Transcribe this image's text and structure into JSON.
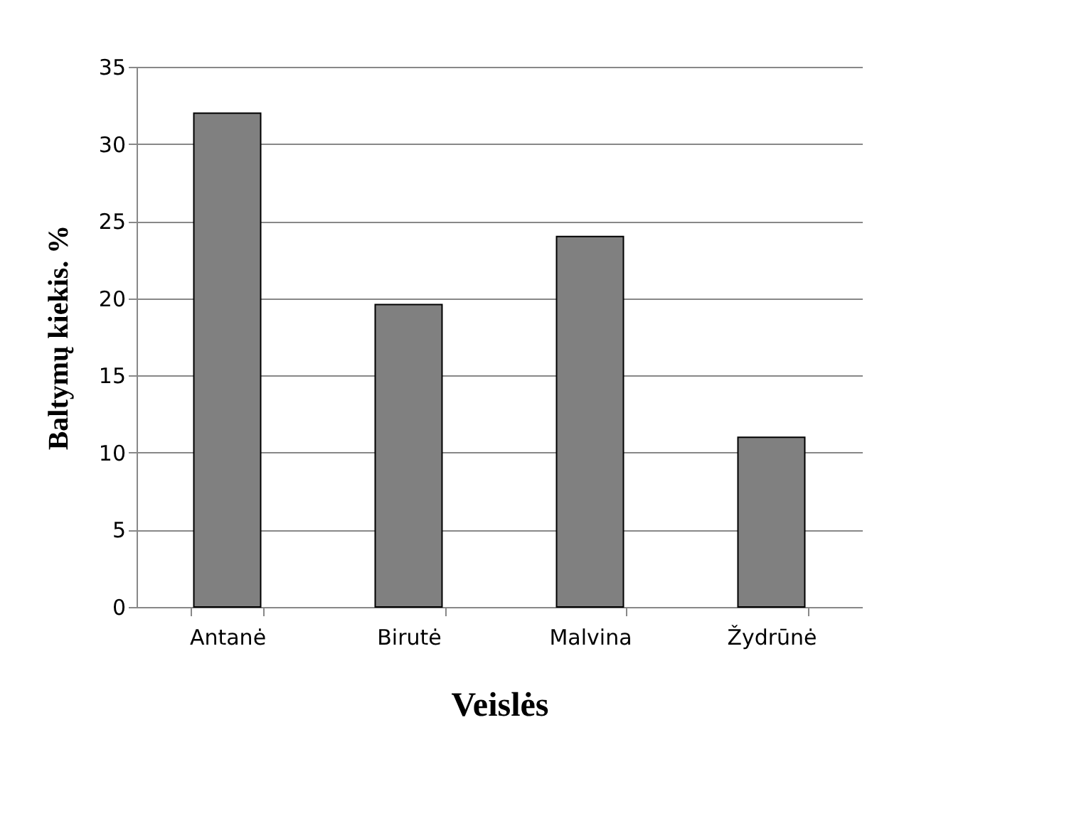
{
  "chart_data": {
    "type": "bar",
    "categories": [
      "Antanė",
      "Birutė",
      "Malvina",
      "Žydrūnė"
    ],
    "values": [
      32,
      19.6,
      24,
      11
    ],
    "color": "#808080",
    "xlabel": "Veislės",
    "ylabel": "Baltymų kiekis.  %",
    "ylim": [
      0,
      35
    ],
    "yticks": [
      0,
      5,
      10,
      15,
      20,
      25,
      30,
      35
    ],
    "grid": "y",
    "legend": false
  }
}
